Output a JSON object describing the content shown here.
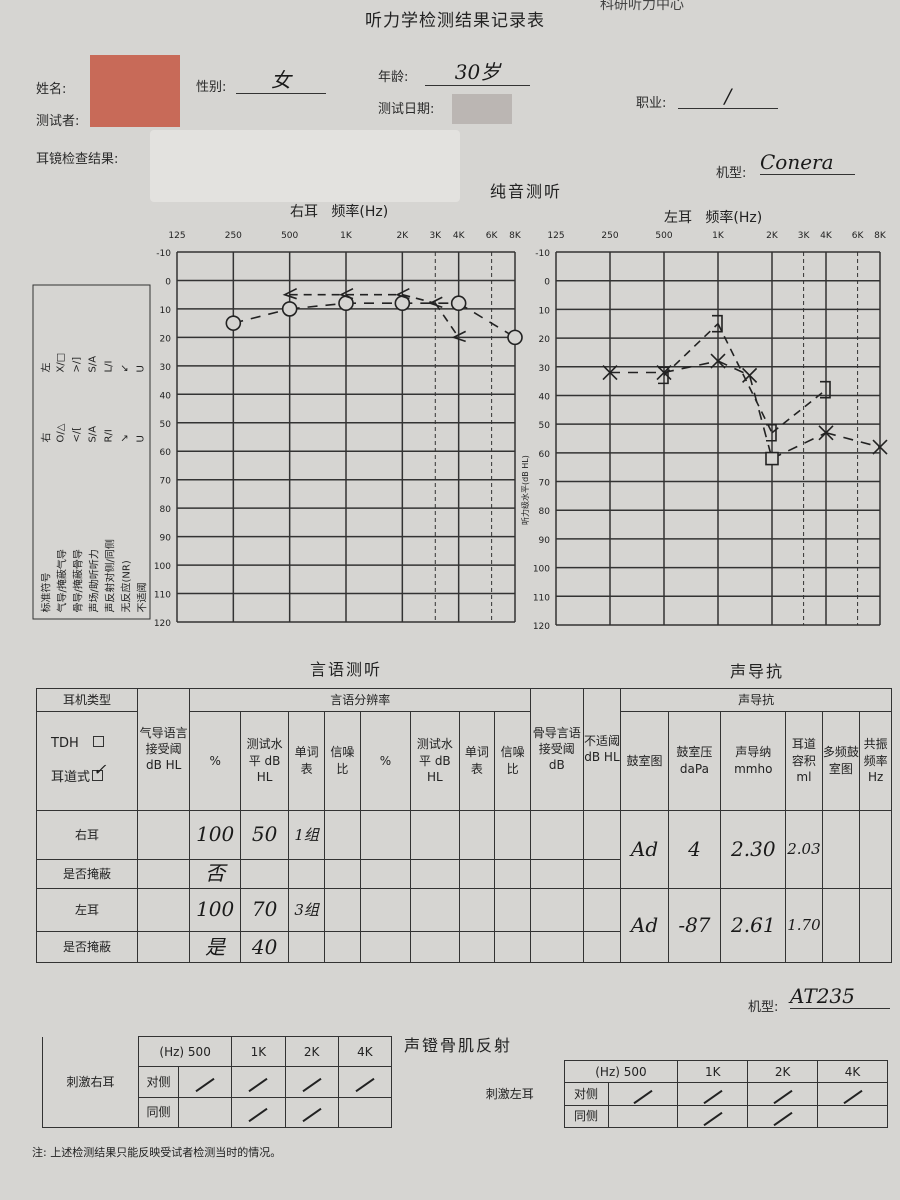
{
  "header": {
    "org_partial": "科研听力中心",
    "title": "听力学检测结果记录表"
  },
  "patient": {
    "name_label": "姓名:",
    "gender_label": "性别:",
    "gender_value": "女",
    "age_label": "年龄:",
    "age_value": "30岁",
    "tester_label": "测试者:",
    "date_label": "测试日期:",
    "occupation_label": "职业:",
    "occupation_value": "/",
    "otoscopy_label": "耳镜检查结果:",
    "device_label": "机型:",
    "device_value": "Conera"
  },
  "pure_tone": {
    "title": "纯音测听",
    "right_title": "右耳",
    "left_title": "左耳",
    "freq_label": "频率(Hz)",
    "y_axis_label": "听力级水平(dB HL)",
    "legend": {
      "header": [
        "标准符号",
        "右",
        "左"
      ],
      "rows": [
        [
          "气导/掩蔽气导",
          "O/△",
          "X/□"
        ],
        [
          "骨导/掩蔽骨导",
          "</[",
          ">/]"
        ],
        [
          "声场/助听听力",
          "S/A",
          "S/A"
        ],
        [
          "声反射对侧/同侧",
          "R/I",
          "L/I"
        ],
        [
          "无反应(NR)",
          "↘",
          "↙"
        ],
        [
          "不适阈",
          "U",
          "U"
        ]
      ]
    }
  },
  "chart_data": [
    {
      "type": "line",
      "title": "右耳",
      "xlabel": "频率(Hz)",
      "ylabel": "听力级水平(dB HL)",
      "x_ticks": [
        "125",
        "250",
        "500",
        "1K",
        "2K",
        "3K",
        "4K",
        "6K",
        "8K"
      ],
      "y_ticks": [
        -10,
        0,
        10,
        20,
        30,
        40,
        50,
        60,
        70,
        80,
        90,
        100,
        110,
        120
      ],
      "ylim": [
        -10,
        120
      ],
      "y_inverted": true,
      "x_scale": "log",
      "grid": true,
      "series": [
        {
          "name": "气导",
          "symbol": "O",
          "line": "solid",
          "points": [
            [
              250,
              15
            ],
            [
              500,
              10
            ],
            [
              1000,
              8
            ],
            [
              2000,
              8
            ],
            [
              4000,
              8
            ],
            [
              8000,
              20
            ]
          ]
        },
        {
          "name": "骨导",
          "symbol": "<",
          "line": "dashed",
          "points": [
            [
              500,
              5
            ],
            [
              1000,
              5
            ],
            [
              2000,
              5
            ],
            [
              3000,
              8
            ],
            [
              4000,
              20
            ]
          ]
        }
      ]
    },
    {
      "type": "line",
      "title": "左耳",
      "xlabel": "频率(Hz)",
      "ylabel": "听力级水平(dB HL)",
      "x_ticks": [
        "125",
        "250",
        "500",
        "1K",
        "2K",
        "3K",
        "4K",
        "6K",
        "8K"
      ],
      "y_ticks": [
        -10,
        0,
        10,
        20,
        30,
        40,
        50,
        60,
        70,
        80,
        90,
        100,
        110,
        120
      ],
      "ylim": [
        -10,
        120
      ],
      "y_inverted": true,
      "x_scale": "log",
      "grid": true,
      "series": [
        {
          "name": "气导",
          "symbol": "X",
          "line": "solid",
          "points": [
            [
              250,
              32
            ],
            [
              500,
              32
            ],
            [
              1000,
              28
            ],
            [
              1500,
              33
            ],
            [
              2000,
              62,
              "□"
            ],
            [
              4000,
              53
            ],
            [
              8000,
              58
            ]
          ]
        },
        {
          "name": "骨导",
          "symbol": "]",
          "line": "dashed",
          "points": [
            [
              500,
              33
            ],
            [
              1000,
              15
            ],
            [
              2000,
              53
            ],
            [
              4000,
              38
            ]
          ]
        }
      ]
    }
  ],
  "speech": {
    "title": "言语测听",
    "headers": {
      "earphone": "耳机类型",
      "tdh": "TDH",
      "insert": "耳道式",
      "srt_air": "气导语言接受阈 dB HL",
      "discrimination": "言语分辨率",
      "pct": "%",
      "level": "测试水平 dB HL",
      "wordlist": "单词表",
      "snr": "信噪比",
      "srt_bone": "骨导言语接受阈 dB",
      "ucl": "不适阈 dB HL"
    },
    "rows": [
      {
        "label": "右耳",
        "pct": "100",
        "level": "50",
        "wordlist": "1组"
      },
      {
        "label": "是否掩蔽",
        "pct": "否",
        "level": "",
        "wordlist": ""
      },
      {
        "label": "左耳",
        "pct": "100",
        "level": "70",
        "wordlist": "3组"
      },
      {
        "label": "是否掩蔽",
        "pct": "是",
        "level": "40",
        "wordlist": ""
      }
    ],
    "insert_checked": true,
    "tdh_checked": false
  },
  "immittance": {
    "title": "声导抗",
    "group": "声导抗",
    "headers": [
      "鼓室图",
      "鼓室压 daPa",
      "声导纳 mmho",
      "耳道容积 ml",
      "多频鼓室图",
      "共振频率 Hz"
    ],
    "right": [
      "Ad",
      "4",
      "2.30",
      "2.03",
      "",
      ""
    ],
    "left": [
      "Ad",
      "-87",
      "2.61",
      "1.70",
      "",
      ""
    ],
    "device_label": "机型:",
    "device_value": "AT235"
  },
  "reflex": {
    "title": "声镫骨肌反射",
    "hz_label": "(Hz) 500",
    "freqs": [
      "1K",
      "2K",
      "4K"
    ],
    "contra": "对侧",
    "ipsi": "同侧",
    "right_label": "刺激右耳",
    "left_label": "刺激左耳",
    "right_contra": [
      true,
      true,
      true,
      true
    ],
    "right_ipsi": [
      false,
      true,
      true,
      false
    ],
    "left_contra": [
      true,
      true,
      true,
      true
    ],
    "left_ipsi": [
      false,
      true,
      true,
      false
    ]
  },
  "footer": {
    "note": "注: 上述检测结果只能反映受试者检测当时的情况。"
  }
}
